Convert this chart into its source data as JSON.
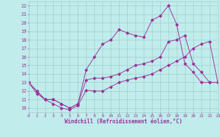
{
  "xlabel": "Windchill (Refroidissement éolien,°C)",
  "bg_color": "#c0ecec",
  "grid_color": "#a0cccc",
  "line_color": "#993399",
  "xmin": 0,
  "xmax": 23,
  "ymin": 9.5,
  "ymax": 22.5,
  "yticks": [
    10,
    11,
    12,
    13,
    14,
    15,
    16,
    17,
    18,
    19,
    20,
    21,
    22
  ],
  "xticks": [
    0,
    1,
    2,
    3,
    4,
    5,
    6,
    7,
    8,
    9,
    10,
    11,
    12,
    13,
    14,
    15,
    16,
    17,
    18,
    19,
    20,
    21,
    22,
    23
  ],
  "line1_x": [
    0,
    1,
    2,
    3,
    4,
    5,
    6,
    7,
    8,
    9,
    10,
    11,
    12,
    13,
    14,
    15,
    16,
    17,
    18,
    19,
    20,
    21,
    22,
    23
  ],
  "line1_y": [
    13,
    11.7,
    11,
    10.5,
    10,
    9.8,
    10.3,
    12.1,
    12.0,
    12.0,
    12.5,
    13.0,
    13.3,
    13.5,
    13.7,
    14.0,
    14.5,
    15.0,
    15.5,
    16.0,
    17.0,
    17.5,
    17.8,
    13.0
  ],
  "line2_x": [
    0,
    1,
    2,
    3,
    4,
    5,
    6,
    7,
    8,
    9,
    10,
    11,
    12,
    13,
    14,
    15,
    16,
    17,
    18,
    19,
    20,
    21,
    22,
    23
  ],
  "line2_y": [
    13,
    12,
    11,
    11,
    10.5,
    10,
    10.5,
    14.5,
    16.0,
    17.5,
    18.0,
    19.2,
    18.8,
    18.5,
    18.3,
    20.3,
    20.8,
    22.0,
    19.8,
    15.2,
    14.2,
    13.0,
    13.0,
    13.0
  ],
  "line3_x": [
    0,
    1,
    2,
    3,
    4,
    5,
    6,
    7,
    8,
    9,
    10,
    11,
    12,
    13,
    14,
    15,
    16,
    17,
    18,
    19,
    20,
    21,
    22,
    23
  ],
  "line3_y": [
    13,
    12,
    11,
    11,
    10.5,
    10,
    10.5,
    13.3,
    13.5,
    13.5,
    13.7,
    14.0,
    14.5,
    15.0,
    15.2,
    15.5,
    16.0,
    17.8,
    18.0,
    18.5,
    15.2,
    14.2,
    13.0,
    13.0
  ]
}
